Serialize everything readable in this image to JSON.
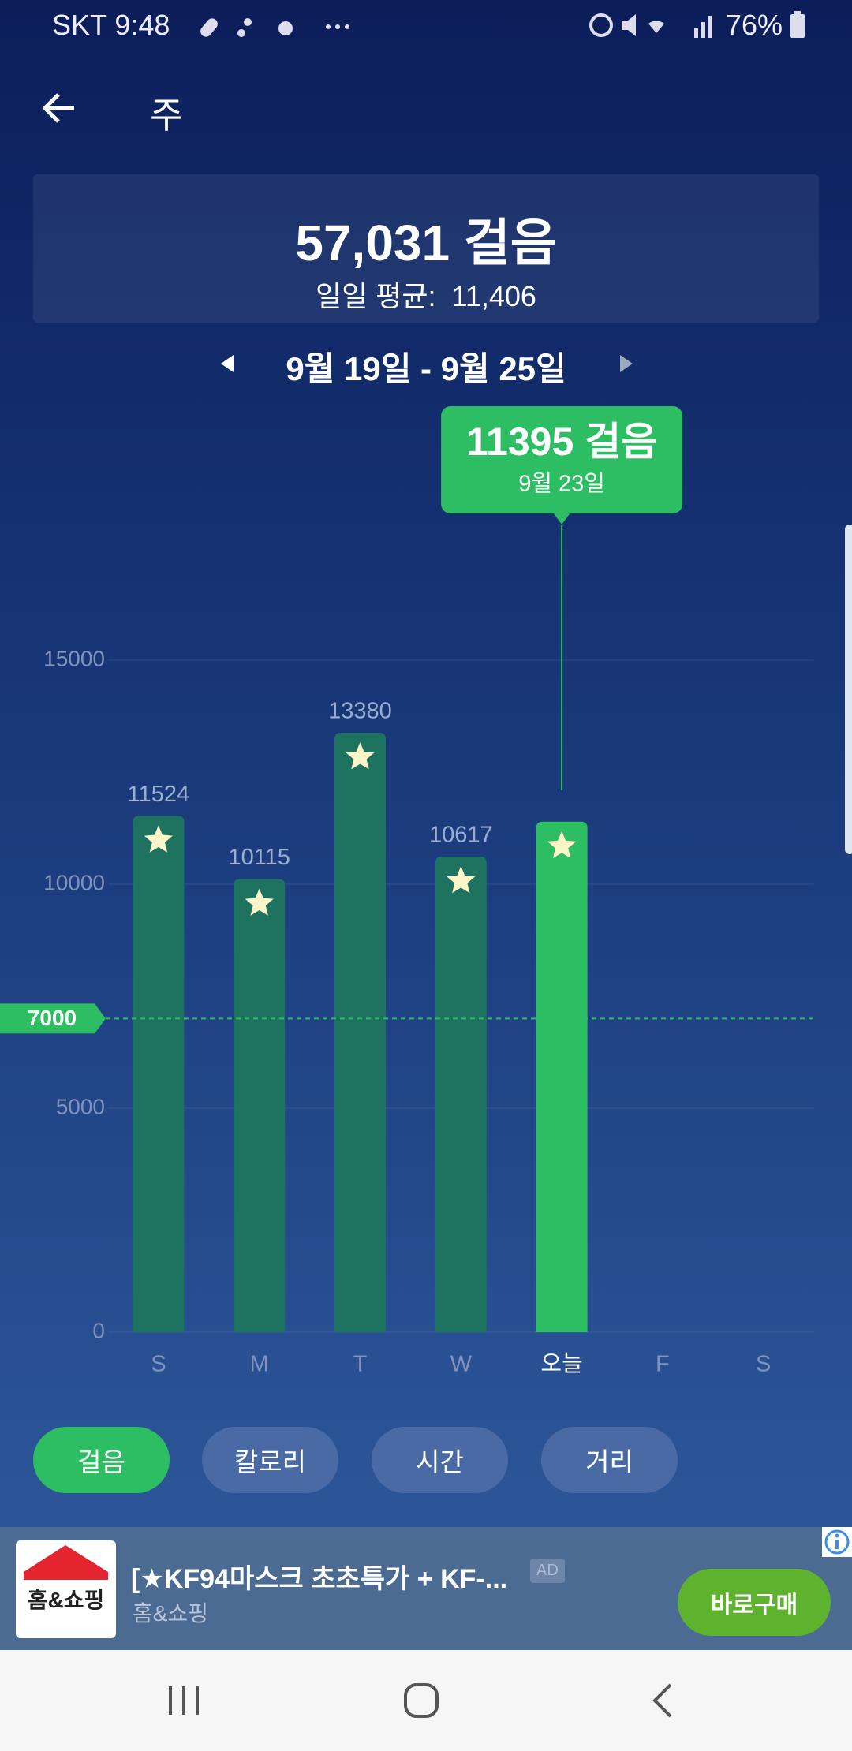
{
  "status_bar": {
    "carrier_time": "SKT 9:48",
    "battery": "76%"
  },
  "header": {
    "title": "주"
  },
  "summary": {
    "total": "57,031 걸음",
    "average": "일일 평균:  11,406"
  },
  "date_range": "9월 19일 - 9월 25일",
  "chart_data": {
    "type": "bar",
    "categories": [
      "S",
      "M",
      "T",
      "W",
      "오늘",
      "F",
      "S"
    ],
    "values": [
      11524,
      10115,
      13380,
      10617,
      11395,
      null,
      null
    ],
    "color": "#1d735f",
    "selected_color": "#2dbd62",
    "selected": 4,
    "tooltip": {
      "label": "11395 걸음",
      "date": "9월 23일"
    },
    "goal": 7000,
    "goal_color": "#2dbd62",
    "ylim": [
      0,
      15000
    ],
    "yticks": [
      0,
      5000,
      10000,
      15000
    ]
  },
  "tabs": [
    "걸음",
    "칼로리",
    "시간",
    "거리"
  ],
  "active_tab": 0,
  "ad": {
    "icon_text": "홈&쇼핑",
    "title": "[★KF94마스크 초초특가 + KF-...",
    "badge": "AD",
    "advertiser": "홈&쇼핑",
    "button": "바로구매"
  }
}
